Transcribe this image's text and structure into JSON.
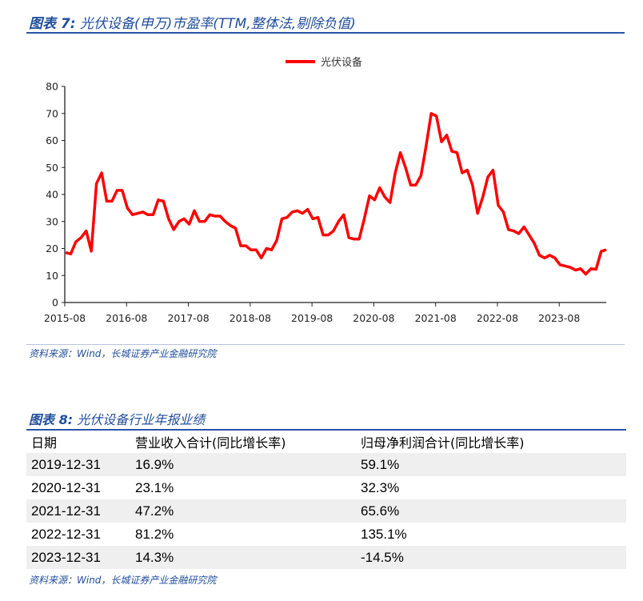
{
  "figure7": {
    "label": "图表 7:",
    "title": "光伏设备(申万)市盈率(TTM,整体法,剔除负值)",
    "source": "资料来源：Wind，长城证券产业金融研究院"
  },
  "chart_data": {
    "type": "line",
    "title": "光伏设备(申万)市盈率(TTM,整体法,剔除负值)",
    "legend": [
      "光伏设备"
    ],
    "legend_position": "top-right",
    "color": "#ff0000",
    "ylim": [
      0,
      80
    ],
    "yticks": [
      "0",
      "10",
      "20",
      "30",
      "40",
      "50",
      "60",
      "70",
      "80"
    ],
    "xticks": [
      "2015-08",
      "2016-08",
      "2017-08",
      "2018-08",
      "2019-08",
      "2020-08",
      "2021-08",
      "2022-08",
      "2023-08"
    ],
    "x_start": "2015-08",
    "x_unit": "month",
    "series": [
      {
        "name": "光伏设备",
        "values": [
          18.5,
          18,
          22.5,
          24,
          26.5,
          19,
          44,
          48,
          37.5,
          37.5,
          41.5,
          41.5,
          35,
          32.5,
          33,
          33.5,
          32.5,
          32.5,
          38,
          37.5,
          31,
          27,
          30,
          31,
          29,
          34,
          30,
          30,
          32.5,
          32,
          32,
          30,
          28.5,
          27.5,
          21,
          21,
          19.5,
          19.5,
          16.5,
          20,
          19.5,
          23,
          31,
          31.5,
          33.5,
          34,
          33,
          34.5,
          31,
          31.5,
          25,
          25,
          26.5,
          30,
          32.5,
          24,
          23.5,
          23.5,
          31,
          39.5,
          38,
          42.5,
          39,
          37,
          48,
          55.5,
          50,
          43.5,
          43.5,
          47,
          58,
          70,
          69,
          59.5,
          62,
          56,
          55.5,
          48,
          49,
          43.5,
          33,
          39,
          46.5,
          49,
          36,
          33.5,
          27,
          26.5,
          25.5,
          28,
          25,
          22,
          17.5,
          16.5,
          17.5,
          16.5,
          14,
          13.5,
          13,
          12,
          12.5,
          10.5,
          12.5,
          12.3,
          19,
          19.5
        ]
      }
    ]
  },
  "figure8": {
    "label": "图表 8:",
    "title": "光伏设备行业年报业绩",
    "headers": [
      "日期",
      "营业收入合计(同比增长率)",
      "归母净利润合计(同比增长率)"
    ],
    "rows": [
      [
        "2019-12-31",
        "16.9%",
        "59.1%"
      ],
      [
        "2020-12-31",
        "23.1%",
        "32.3%"
      ],
      [
        "2021-12-31",
        "47.2%",
        "65.6%"
      ],
      [
        "2022-12-31",
        "81.2%",
        "135.1%"
      ],
      [
        "2023-12-31",
        "14.3%",
        "-14.5%"
      ]
    ],
    "source": "资料来源：Wind，长城证券产业金融研究院"
  }
}
